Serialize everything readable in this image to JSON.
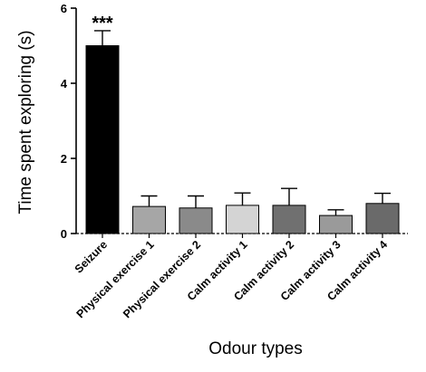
{
  "chart_data": {
    "type": "bar",
    "title": "",
    "xlabel": "Odour types",
    "ylabel": "Time spent exploring (s)",
    "ylim": [
      0,
      6
    ],
    "yticks": [
      0,
      2,
      4,
      6
    ],
    "grid": false,
    "categories": [
      "Seizure",
      "Physical exercise 1",
      "Physical exercise 2",
      "Calm activity 1",
      "Calm activity 2",
      "Calm activity 3",
      "Calm activity 4"
    ],
    "values": [
      5.0,
      0.72,
      0.68,
      0.75,
      0.75,
      0.48,
      0.8
    ],
    "errors": [
      0.4,
      0.28,
      0.32,
      0.33,
      0.45,
      0.15,
      0.27
    ],
    "bar_colors": [
      "#000000",
      "#a6a6a6",
      "#8a8a8a",
      "#d4d4d4",
      "#707070",
      "#9a9a9a",
      "#6a6a6a"
    ],
    "annotations": [
      {
        "category": "Seizure",
        "text": "***"
      }
    ]
  }
}
